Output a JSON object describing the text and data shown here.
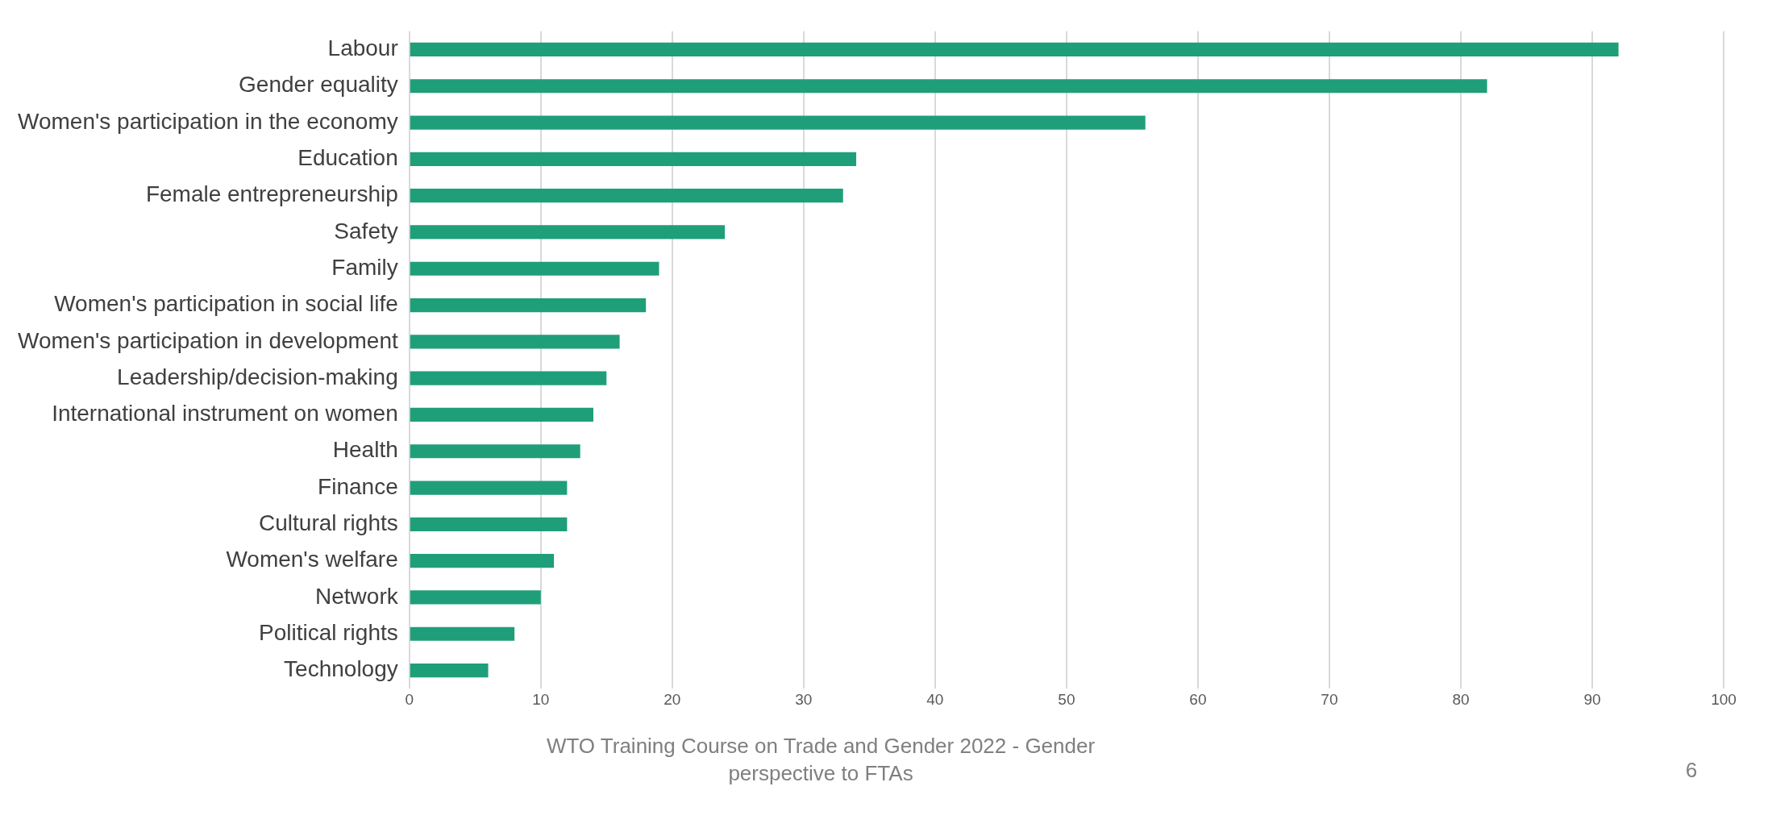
{
  "chart_data": {
    "type": "bar",
    "orientation": "horizontal",
    "categories": [
      "Labour",
      "Gender equality",
      "Women's participation in the economy",
      "Education",
      "Female entrepreneurship",
      "Safety",
      "Family",
      "Women's participation in social life",
      "Women's participation in development",
      "Leadership/decision-making",
      "International instrument on women",
      "Health",
      "Finance",
      "Cultural rights",
      "Women's welfare",
      "Network",
      "Political rights",
      "Technology"
    ],
    "values": [
      92,
      82,
      56,
      34,
      33,
      24,
      19,
      18,
      16,
      15,
      14,
      13,
      12,
      12,
      11,
      10,
      8,
      6
    ],
    "color": "#1f9e7a",
    "xlim": [
      0,
      100
    ],
    "xticks": [
      0,
      10,
      20,
      30,
      40,
      50,
      60,
      70,
      80,
      90,
      100
    ],
    "grid": "x",
    "legend": false,
    "annotations": [
      "WTO Training Course on Trade and Gender 2022 - Gender perspective to FTAs",
      "6"
    ]
  }
}
